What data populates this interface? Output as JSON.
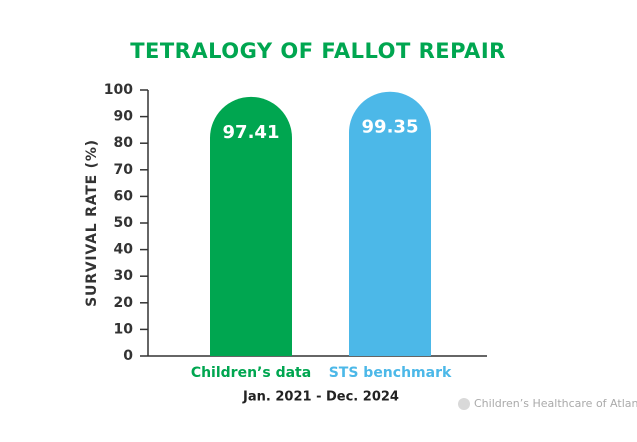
{
  "chart_data": {
    "type": "bar",
    "title": "TETRALOGY OF FALLOT REPAIR",
    "ylabel": "SURVIVAL RATE (%)",
    "xlabel": "Jan. 2021 - Dec. 2024",
    "categories": [
      "Children’s data",
      "STS benchmark"
    ],
    "values": [
      97.41,
      99.35
    ],
    "colors": [
      "#00a650",
      "#4cb8e8"
    ],
    "ylim": [
      0,
      100
    ],
    "yticks": [
      0,
      10,
      20,
      30,
      40,
      50,
      60,
      70,
      80,
      90,
      100
    ],
    "source": "Children’s Healthcare of Atlanta"
  }
}
